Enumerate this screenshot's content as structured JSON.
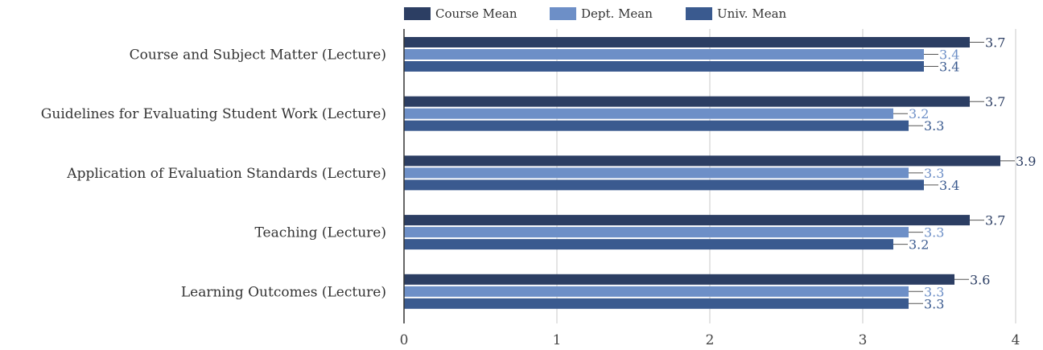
{
  "chart_data": {
    "type": "bar",
    "orientation": "horizontal",
    "title": "",
    "xlabel": "",
    "ylabel": "",
    "xlim": [
      0,
      4
    ],
    "ticks": [
      "0",
      "1",
      "2",
      "3",
      "4"
    ],
    "grid": true,
    "legend_position": "top",
    "categories": [
      "Course and Subject Matter (Lecture)",
      "Guidelines for Evaluating Student Work (Lecture)",
      "Application of Evaluation Standards (Lecture)",
      "Teaching (Lecture)",
      "Learning Outcomes (Lecture)"
    ],
    "series": [
      {
        "name": "Course Mean",
        "color": "#2c3e63",
        "label_color": "#2c3e63",
        "values": [
          3.7,
          3.7,
          3.9,
          3.7,
          3.6
        ],
        "labels": [
          "3.7",
          "3.7",
          "3.9",
          "3.7",
          "3.6"
        ]
      },
      {
        "name": "Dept. Mean",
        "color": "#6d8fc7",
        "label_color": "#6d8fc7",
        "values": [
          3.4,
          3.2,
          3.3,
          3.3,
          3.3
        ],
        "labels": [
          "3.4",
          "3.2",
          "3.3",
          "3.3",
          "3.3"
        ]
      },
      {
        "name": "Univ. Mean",
        "color": "#3a5a8f",
        "label_color": "#3a5a8f",
        "values": [
          3.4,
          3.3,
          3.4,
          3.2,
          3.3
        ],
        "labels": [
          "3.4",
          "3.3",
          "3.4",
          "3.2",
          "3.3"
        ]
      }
    ]
  }
}
